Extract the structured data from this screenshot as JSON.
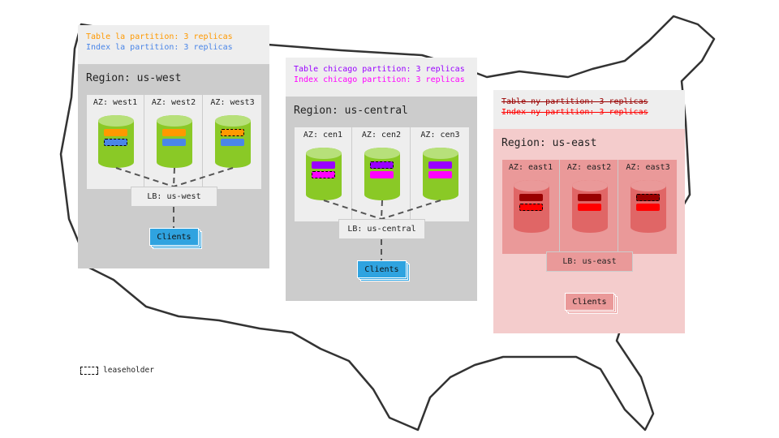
{
  "regions": [
    {
      "name": "us-west",
      "title": "Region: us-west",
      "lines": [
        "Table la partition: 3 replicas",
        "Index la partition: 3 replicas"
      ],
      "line_colors": [
        "#ff9900",
        "#4a86e8"
      ],
      "strike": false,
      "azs": [
        "AZ: west1",
        "AZ: west2",
        "AZ: west3"
      ],
      "leaseholders": [
        "index",
        "none",
        "table"
      ],
      "lb": "LB: us-west",
      "clients": "Clients",
      "colors": {
        "body": "#cccccc",
        "azbox": "#eeeeee",
        "cyl": "#8ac926",
        "cyltop": "#b7e07a",
        "table": "#ff9900",
        "index": "#4a86e8",
        "lb": "#eeeeee",
        "clients": "#2fa3e0"
      }
    },
    {
      "name": "us-central",
      "title": "Region: us-central",
      "lines": [
        "Table chicago partition: 3 replicas",
        "Index chicago partition: 3 replicas"
      ],
      "line_colors": [
        "#9900ff",
        "#ff00ff"
      ],
      "strike": false,
      "azs": [
        "AZ: cen1",
        "AZ: cen2",
        "AZ: cen3"
      ],
      "leaseholders": [
        "index",
        "table",
        "none"
      ],
      "lb": "LB: us-central",
      "clients": "Clients",
      "colors": {
        "body": "#cccccc",
        "azbox": "#eeeeee",
        "cyl": "#8ac926",
        "cyltop": "#b7e07a",
        "table": "#9900ff",
        "index": "#ff00ff",
        "lb": "#eeeeee",
        "clients": "#2fa3e0"
      }
    },
    {
      "name": "us-east",
      "title": "Region: us-east",
      "lines": [
        "Table ny partition: 3 replicas",
        "Index ny partition: 3 replicas"
      ],
      "line_colors": [
        "#990000",
        "#ff0000"
      ],
      "strike": true,
      "azs": [
        "AZ: east1",
        "AZ: east2",
        "AZ: east3"
      ],
      "leaseholders": [
        "index",
        "none",
        "table"
      ],
      "lb": "LB: us-east",
      "clients": "Clients",
      "colors": {
        "body": "#f4cccc",
        "azbox": "#ea9999",
        "cyl": "#e06666",
        "cyltop": "#ea9999",
        "table": "#990000",
        "index": "#ff0000",
        "lb": "#ea9999",
        "clients": "#ea9999"
      }
    }
  ],
  "legend": {
    "label": "leaseholder"
  }
}
